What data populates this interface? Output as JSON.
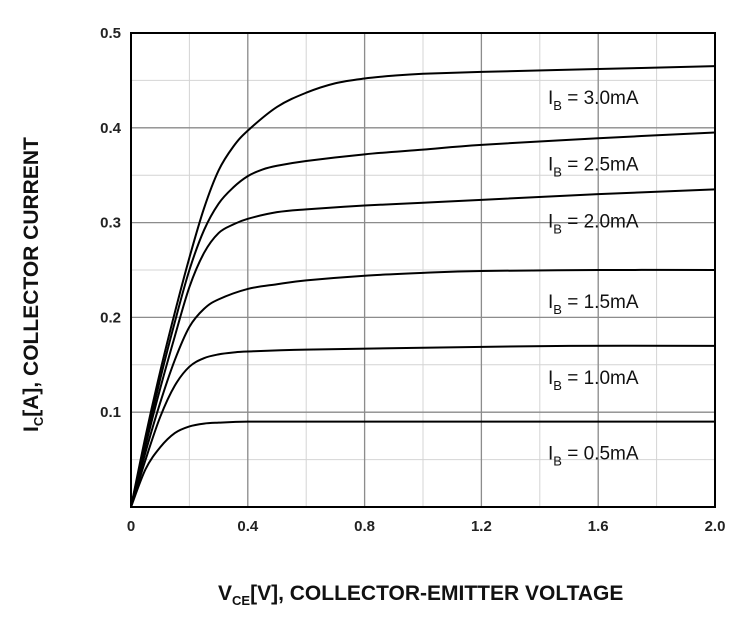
{
  "chart_data": {
    "type": "line",
    "title": "",
    "xlabel": {
      "main": "V",
      "sub": "CE",
      "rest": "[V], COLLECTOR-EMITTER VOLTAGE"
    },
    "ylabel": {
      "main": "I",
      "sub": "C",
      "rest": "[A], COLLECTOR CURRENT"
    },
    "xlim": [
      0,
      2.0
    ],
    "ylim": [
      0,
      0.5
    ],
    "xticks": [
      "0",
      "0.4",
      "0.8",
      "1.2",
      "1.6",
      "2.0"
    ],
    "yticks": [
      "0.1",
      "0.2",
      "0.3",
      "0.4",
      "0.5"
    ],
    "xtick_values": [
      0,
      0.4,
      0.8,
      1.2,
      1.6,
      2.0
    ],
    "ytick_values": [
      0.1,
      0.2,
      0.3,
      0.4,
      0.5
    ],
    "minor_grid_step_x": 0.2,
    "minor_grid_step_y": 0.05,
    "grid": true,
    "series": [
      {
        "name": "I_B = 0.5mA",
        "label_main": "I",
        "label_sub": "B",
        "label_rest": " = 0.5mA",
        "x": [
          0,
          0.05,
          0.1,
          0.15,
          0.2,
          0.25,
          0.3,
          0.4,
          0.6,
          1.0,
          1.5,
          2.0
        ],
        "y": [
          0,
          0.04,
          0.063,
          0.078,
          0.085,
          0.088,
          0.089,
          0.09,
          0.09,
          0.09,
          0.09,
          0.09
        ]
      },
      {
        "name": "I_B = 1.0mA",
        "label_main": "I",
        "label_sub": "B",
        "label_rest": " = 1.0mA",
        "x": [
          0,
          0.05,
          0.1,
          0.15,
          0.2,
          0.25,
          0.3,
          0.35,
          0.4,
          0.6,
          1.0,
          1.5,
          2.0
        ],
        "y": [
          0,
          0.05,
          0.095,
          0.128,
          0.148,
          0.157,
          0.161,
          0.163,
          0.164,
          0.166,
          0.168,
          0.17,
          0.17
        ]
      },
      {
        "name": "I_B = 1.5mA",
        "label_main": "I",
        "label_sub": "B",
        "label_rest": " = 1.5mA",
        "x": [
          0,
          0.05,
          0.1,
          0.15,
          0.2,
          0.25,
          0.3,
          0.4,
          0.5,
          0.6,
          0.8,
          1.0,
          1.2,
          1.6,
          2.0
        ],
        "y": [
          0,
          0.058,
          0.11,
          0.155,
          0.19,
          0.209,
          0.219,
          0.23,
          0.235,
          0.239,
          0.244,
          0.247,
          0.249,
          0.25,
          0.25
        ]
      },
      {
        "name": "I_B = 2.0mA",
        "label_main": "I",
        "label_sub": "B",
        "label_rest": " = 2.0mA",
        "x": [
          0,
          0.05,
          0.1,
          0.15,
          0.2,
          0.25,
          0.3,
          0.35,
          0.4,
          0.5,
          0.6,
          0.8,
          1.0,
          1.2,
          1.6,
          2.0
        ],
        "y": [
          0,
          0.065,
          0.125,
          0.18,
          0.232,
          0.268,
          0.289,
          0.298,
          0.304,
          0.311,
          0.314,
          0.318,
          0.321,
          0.324,
          0.33,
          0.335
        ]
      },
      {
        "name": "I_B = 2.5mA",
        "label_main": "I",
        "label_sub": "B",
        "label_rest": " = 2.5mA",
        "x": [
          0,
          0.05,
          0.1,
          0.15,
          0.2,
          0.25,
          0.3,
          0.35,
          0.4,
          0.45,
          0.5,
          0.6,
          0.8,
          1.0,
          1.2,
          1.6,
          2.0
        ],
        "y": [
          0,
          0.07,
          0.135,
          0.195,
          0.25,
          0.292,
          0.32,
          0.337,
          0.349,
          0.356,
          0.36,
          0.365,
          0.372,
          0.377,
          0.382,
          0.389,
          0.395
        ]
      },
      {
        "name": "I_B = 3.0mA",
        "label_main": "I",
        "label_sub": "B",
        "label_rest": " = 3.0mA",
        "x": [
          0,
          0.05,
          0.1,
          0.15,
          0.2,
          0.25,
          0.3,
          0.35,
          0.4,
          0.5,
          0.6,
          0.7,
          0.8,
          0.9,
          1.0,
          1.2,
          1.6,
          2.0
        ],
        "y": [
          0,
          0.075,
          0.143,
          0.205,
          0.263,
          0.315,
          0.355,
          0.38,
          0.397,
          0.422,
          0.437,
          0.447,
          0.452,
          0.455,
          0.457,
          0.459,
          0.462,
          0.465
        ]
      }
    ],
    "label_positions": [
      "right-of-curve"
    ]
  }
}
